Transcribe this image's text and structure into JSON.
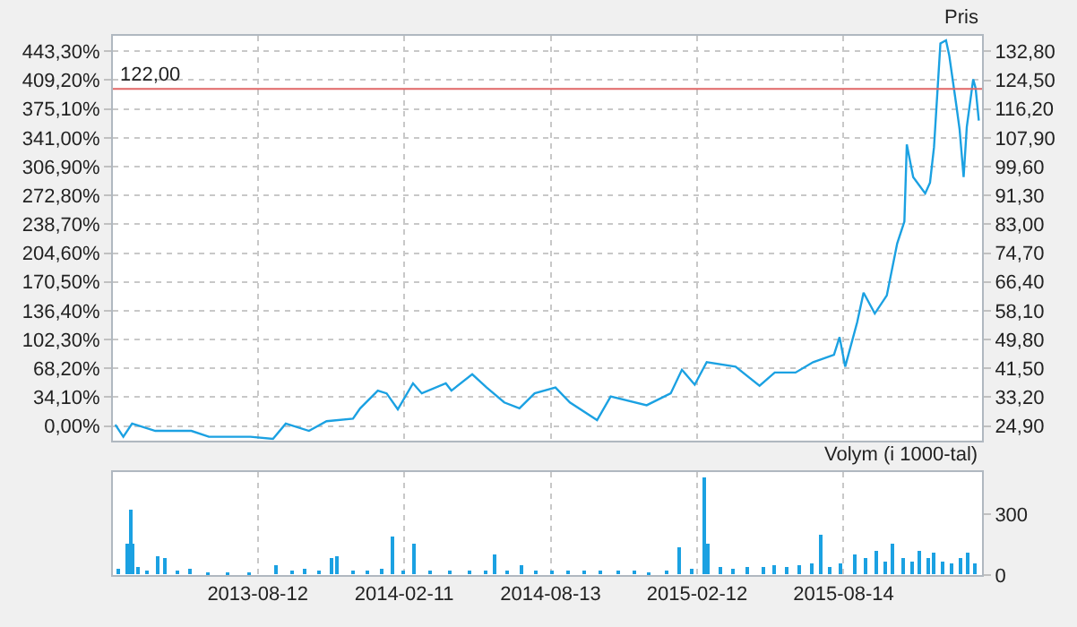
{
  "chart_data": [
    {
      "type": "line",
      "y2label": "Pris",
      "xlim": [
        "2013-02-12",
        "2016-02-03"
      ],
      "xticks": [
        {
          "value": "2013-08-12",
          "label": null
        },
        {
          "value": "2014-02-11",
          "label": null
        },
        {
          "value": "2014-08-13",
          "label": null
        },
        {
          "value": "2015-02-12",
          "label": null
        },
        {
          "value": "2015-08-14",
          "label": null
        }
      ],
      "ylim": [
        -16.8,
        461.6
      ],
      "yticks": [
        {
          "value": 0,
          "label": "0,00%"
        },
        {
          "value": 34.1,
          "label": "34,10%"
        },
        {
          "value": 68.2,
          "label": "68,20%"
        },
        {
          "value": 102.3,
          "label": "102,30%"
        },
        {
          "value": 136.4,
          "label": "136,40%"
        },
        {
          "value": 170.5,
          "label": "170,50%"
        },
        {
          "value": 204.6,
          "label": "204,60%"
        },
        {
          "value": 238.7,
          "label": "238,70%"
        },
        {
          "value": 272.8,
          "label": "272,80%"
        },
        {
          "value": 306.9,
          "label": "306,90%"
        },
        {
          "value": 341.0,
          "label": "341,00%"
        },
        {
          "value": 375.1,
          "label": "375,10%"
        },
        {
          "value": 409.2,
          "label": "409,20%"
        },
        {
          "value": 443.3,
          "label": "443,30%"
        }
      ],
      "y2lim": [
        20.8,
        137.3
      ],
      "y2ticks": [
        {
          "value": 24.9,
          "label": "24,90"
        },
        {
          "value": 33.2,
          "label": "33,20"
        },
        {
          "value": 41.5,
          "label": "41,50"
        },
        {
          "value": 49.8,
          "label": "49,80"
        },
        {
          "value": 58.1,
          "label": "58,10"
        },
        {
          "value": 66.4,
          "label": "66,40"
        },
        {
          "value": 74.7,
          "label": "74,70"
        },
        {
          "value": 83.0,
          "label": "83,00"
        },
        {
          "value": 91.3,
          "label": "91,30"
        },
        {
          "value": 99.6,
          "label": "99,60"
        },
        {
          "value": 107.9,
          "label": "107,90"
        },
        {
          "value": 116.2,
          "label": "116,20"
        },
        {
          "value": 124.5,
          "label": "124,50"
        },
        {
          "value": 132.8,
          "label": "132,80"
        }
      ],
      "tick_labels": "y",
      "grid": true,
      "ref_lines": [
        {
          "axis": "y2",
          "value": 122.0,
          "label": "122,00",
          "color": "#e06666"
        }
      ],
      "series": [
        {
          "color": "#1ba1e2",
          "axis": "y2",
          "x": [
            "2013-02-15",
            "2013-02-25",
            "2013-03-08",
            "2013-04-06",
            "2013-05-21",
            "2013-06-12",
            "2013-08-03",
            "2013-08-31",
            "2013-09-16",
            "2013-10-15",
            "2013-11-06",
            "2013-12-09",
            "2013-12-18",
            "2014-01-09",
            "2014-01-20",
            "2014-02-03",
            "2014-02-22",
            "2014-03-05",
            "2014-04-04",
            "2014-04-11",
            "2014-05-07",
            "2014-05-25",
            "2014-06-16",
            "2014-07-05",
            "2014-07-24",
            "2014-08-19",
            "2014-09-06",
            "2014-10-10",
            "2014-10-27",
            "2014-12-11",
            "2015-01-10",
            "2015-01-24",
            "2015-02-09",
            "2015-02-24",
            "2015-04-01",
            "2015-05-01",
            "2015-05-20",
            "2015-06-15",
            "2015-07-07",
            "2015-08-02",
            "2015-08-09",
            "2015-08-16",
            "2015-08-31",
            "2015-09-08",
            "2015-09-22",
            "2015-10-07",
            "2015-10-20",
            "2015-10-29",
            "2015-11-01",
            "2015-11-09",
            "2015-11-24",
            "2015-11-30",
            "2015-12-05",
            "2015-12-13",
            "2015-12-20",
            "2015-12-24",
            "2016-01-02",
            "2016-01-06",
            "2016-01-11",
            "2016-01-15",
            "2016-01-23",
            "2016-01-26",
            "2016-01-30"
          ],
          "values": [
            25.3,
            21.8,
            25.6,
            23.5,
            23.5,
            21.8,
            21.8,
            21.2,
            25.6,
            23.5,
            26.3,
            27.0,
            30.0,
            35.1,
            34.3,
            29.7,
            37.2,
            34.3,
            37.2,
            35.1,
            39.8,
            36.0,
            31.7,
            30.0,
            34.3,
            36.0,
            31.7,
            26.6,
            33.4,
            30.9,
            34.3,
            41.1,
            36.8,
            43.3,
            42.0,
            36.5,
            40.3,
            40.3,
            43.3,
            45.4,
            50.5,
            42.0,
            54.8,
            63.3,
            57.3,
            62.5,
            77.5,
            83.8,
            106.0,
            96.6,
            91.9,
            95.0,
            105.2,
            135.1,
            136.0,
            131.7,
            117.1,
            110.3,
            96.6,
            111.1,
            124.8,
            122.2,
            112.9
          ]
        }
      ]
    },
    {
      "type": "bar",
      "y2label": "Volym (i 1000-tal)",
      "xlim": [
        "2013-02-12",
        "2016-02-03"
      ],
      "xticks": [
        "2013-08-12",
        "2014-02-11",
        "2014-08-13",
        "2015-02-12",
        "2015-08-14"
      ],
      "y2lim": [
        0,
        507
      ],
      "y2ticks": [
        0,
        300
      ],
      "grid": "x",
      "series": [
        {
          "color": "#1ba1e2",
          "axis": "y2",
          "x": [
            "2013-02-20",
            "2013-03-03",
            "2013-03-07",
            "2013-03-10",
            "2013-03-16",
            "2013-03-28",
            "2013-04-10",
            "2013-04-19",
            "2013-05-05",
            "2013-05-19",
            "2013-06-10",
            "2013-07-05",
            "2013-08-01",
            "2013-09-05",
            "2013-09-25",
            "2013-10-11",
            "2013-10-28",
            "2013-11-12",
            "2013-11-20",
            "2013-12-10",
            "2013-12-28",
            "2014-01-15",
            "2014-01-28",
            "2014-02-10",
            "2014-02-24",
            "2014-03-15",
            "2014-04-10",
            "2014-05-05",
            "2014-05-25",
            "2014-06-04",
            "2014-06-20",
            "2014-07-08",
            "2014-07-25",
            "2014-08-15",
            "2014-09-05",
            "2014-09-25",
            "2014-10-15",
            "2014-11-05",
            "2014-11-25",
            "2014-12-15",
            "2015-01-05",
            "2015-01-20",
            "2015-02-05",
            "2015-02-21",
            "2015-02-26",
            "2015-03-13",
            "2015-03-30",
            "2015-04-15",
            "2015-05-06",
            "2015-05-20",
            "2015-06-05",
            "2015-06-20",
            "2015-07-05",
            "2015-07-17",
            "2015-07-28",
            "2015-08-10",
            "2015-08-29",
            "2015-09-10",
            "2015-09-24",
            "2015-10-05",
            "2015-10-15",
            "2015-10-28",
            "2015-11-08",
            "2015-11-18",
            "2015-11-28",
            "2015-12-05",
            "2015-12-15",
            "2015-12-28",
            "2016-01-08",
            "2016-01-17",
            "2016-01-26"
          ],
          "values": [
            30,
            150,
            320,
            150,
            40,
            20,
            90,
            80,
            20,
            30,
            10,
            10,
            10,
            50,
            20,
            30,
            20,
            80,
            90,
            20,
            20,
            30,
            190,
            20,
            150,
            20,
            20,
            20,
            20,
            100,
            20,
            50,
            20,
            20,
            20,
            20,
            20,
            20,
            20,
            10,
            20,
            140,
            30,
            480,
            150,
            40,
            30,
            40,
            40,
            50,
            40,
            50,
            60,
            200,
            40,
            60,
            100,
            80,
            120,
            70,
            150,
            80,
            70,
            120,
            80,
            110,
            70,
            60,
            80,
            110,
            60
          ]
        }
      ]
    }
  ]
}
